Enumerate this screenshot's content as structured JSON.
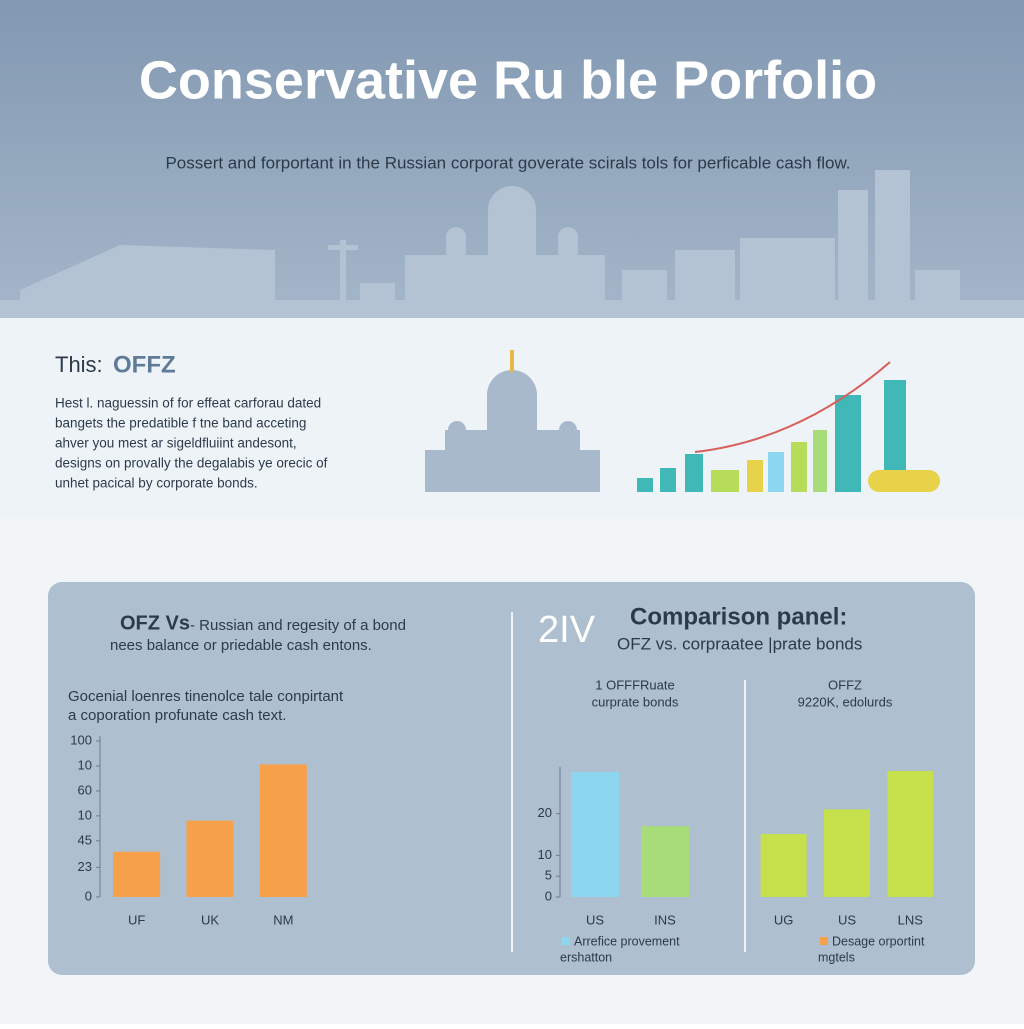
{
  "header": {
    "title": "Conservative Ru ble Porfolio",
    "subtitle": "Possert and forportant in the Russian corporat goverate scirals tols for perficable cash flow."
  },
  "intro": {
    "label": "This:",
    "highlight": "OFFZ",
    "lines": [
      "Hest l. naguessin of for effeat carforau dated",
      "bangets the predatible f tne band acceting",
      "ahver you mest ar sigeldfluiint andesont,",
      "designs on provally the degalabis ye orecic of",
      "unhet pacical by corporate bonds."
    ]
  },
  "panel": {
    "heading": "OFZ Vs",
    "heading_text": "- Russian and regesity of a bond",
    "heading_line2": "nees balance or priedable cash entons.",
    "text": [
      "Gocenial loenres tinenolce tale conpirtant",
      "a coporation profunate cash text."
    ],
    "number": "2IV",
    "comparison_title": "Comparison panel:",
    "comparison_subtitle": "OFZ vs. corpraatee |prate bonds"
  },
  "chart_data": [
    {
      "type": "bar",
      "categories": [
        "UF",
        "UK",
        "NM"
      ],
      "values": [
        29,
        49,
        85
      ],
      "colors": [
        "#f7a04b",
        "#f7a04b",
        "#f7a04b"
      ],
      "ylim": [
        0,
        100
      ],
      "yticks": [
        0,
        {
          "value": 19,
          "label": "23"
        },
        {
          "value": 36,
          "label": "45"
        },
        {
          "value": 52,
          "label": "10"
        },
        {
          "value": 68,
          "label": "60"
        },
        {
          "value": 84,
          "label": "10"
        },
        100
      ]
    },
    {
      "type": "bar",
      "title": "1 OFFFRuate",
      "subtitle": "curprate bonds",
      "categories": [
        "US",
        "INS"
      ],
      "values": [
        30,
        17
      ],
      "colors": [
        "#8dd6f0",
        "#a8dc78"
      ],
      "ylim": [
        0,
        30
      ],
      "yticks": [
        0,
        5,
        10,
        20
      ],
      "legend": [
        "Arrefice provement",
        "ershatton"
      ],
      "legend_color": "#8dd6f0"
    },
    {
      "type": "bar",
      "title": "OFFZ",
      "subtitle": "9220K, edolurds",
      "categories": [
        "UG",
        "US",
        "LNS"
      ],
      "values": [
        64,
        89,
        128
      ],
      "colors": [
        "#c5e04a",
        "#c5e04a",
        "#c5e04a"
      ],
      "ylim": [
        0,
        130
      ],
      "legend": [
        "Desage orportint",
        "mgtels"
      ],
      "legend_color": "#f7a04b"
    }
  ]
}
